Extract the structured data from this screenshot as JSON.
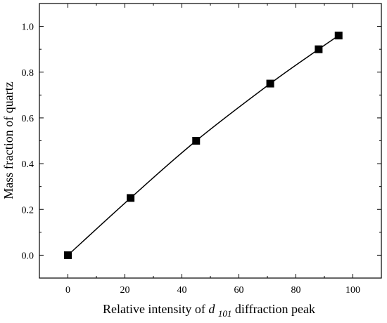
{
  "chart_data": {
    "type": "line",
    "xlabel_parts": {
      "prefix": "Relative intensity of ",
      "symbol": "d",
      "subscript": "101",
      "suffix": " diffraction peak"
    },
    "ylabel": "Mass fraction of quartz",
    "xlim": [
      -10,
      110
    ],
    "ylim": [
      -0.1,
      1.1
    ],
    "x_ticks": [
      0,
      20,
      40,
      60,
      80,
      100
    ],
    "y_ticks": [
      0.0,
      0.2,
      0.4,
      0.6,
      0.8,
      1.0
    ],
    "x_tick_labels": [
      "0",
      "20",
      "40",
      "60",
      "80",
      "100"
    ],
    "y_tick_labels": [
      "0.0",
      "0.2",
      "0.4",
      "0.6",
      "0.8",
      "1.0"
    ],
    "grid": false,
    "legend": "none",
    "series": [
      {
        "marker": "square",
        "color": "#000000",
        "x": [
          0,
          22,
          45,
          71,
          88,
          95
        ],
        "y": [
          0.0,
          0.25,
          0.5,
          0.75,
          0.9,
          0.96
        ]
      }
    ]
  }
}
